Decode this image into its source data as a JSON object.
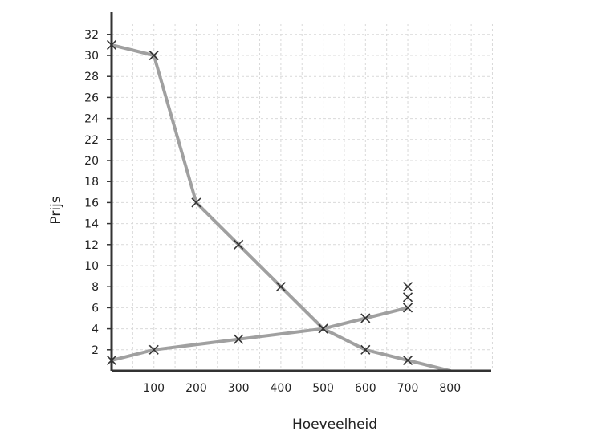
{
  "chart_data": {
    "type": "line",
    "xlabel": "Hoeveelheid",
    "ylabel": "Prijs",
    "xlim": [
      0,
      900
    ],
    "ylim": [
      0,
      34
    ],
    "x_ticks": [
      100,
      200,
      300,
      400,
      500,
      600,
      700,
      800
    ],
    "y_ticks": [
      2,
      4,
      6,
      8,
      10,
      12,
      14,
      16,
      18,
      20,
      22,
      24,
      26,
      28,
      30,
      32
    ],
    "grid": true,
    "series": [
      {
        "x": [
          0,
          100,
          200,
          300,
          400,
          500,
          600,
          700,
          800
        ],
        "y": [
          31,
          30,
          16,
          12,
          8,
          4,
          2,
          1,
          0
        ],
        "markers": [
          true,
          true,
          true,
          true,
          true,
          true,
          true,
          true,
          false
        ]
      },
      {
        "x": [
          0,
          100,
          300,
          500,
          600,
          700
        ],
        "y": [
          1,
          2,
          3,
          4,
          5,
          6
        ],
        "markers": [
          true,
          true,
          true,
          true,
          true,
          true
        ]
      }
    ],
    "extra_points": [
      {
        "x": 700,
        "y": 7
      },
      {
        "x": 700,
        "y": 8
      }
    ],
    "colors": {
      "line": "#a0a0a0",
      "marker": "#333333",
      "axis": "#333333",
      "grid": "#d9d9d9"
    }
  }
}
